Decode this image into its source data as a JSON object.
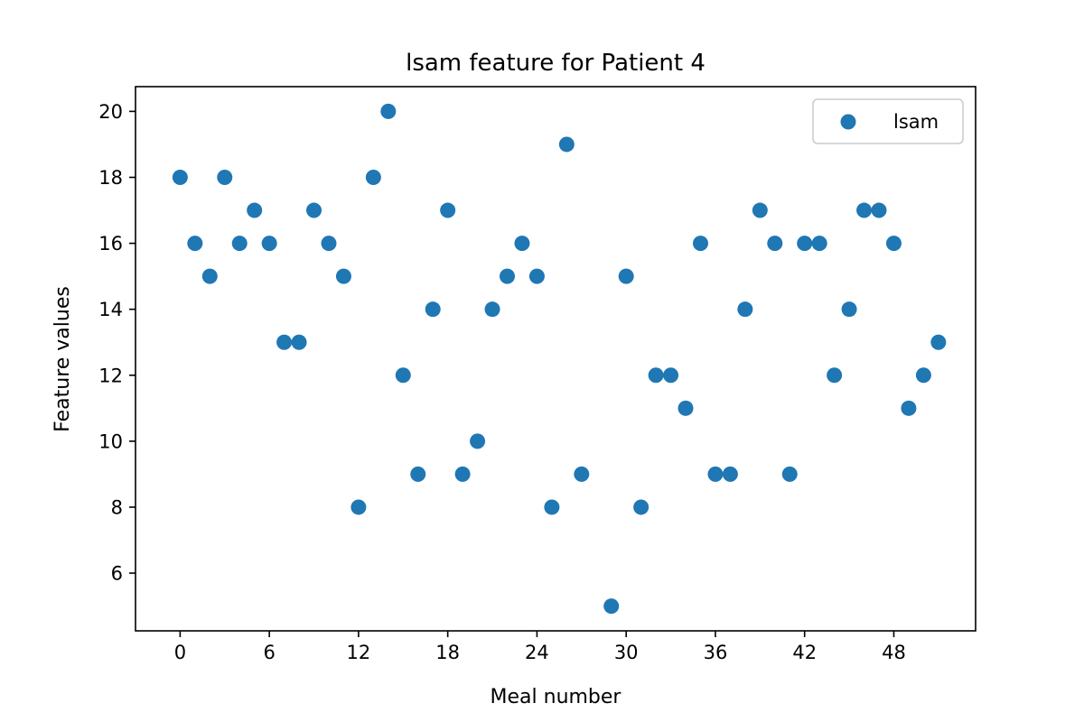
{
  "chart_data": {
    "type": "scatter",
    "title": "lsam feature for Patient 4",
    "xlabel": "Meal number",
    "ylabel": "Feature values",
    "xlim": [
      -3.0,
      53.5
    ],
    "ylim": [
      4.25,
      20.75
    ],
    "xticks": [
      0,
      6,
      12,
      18,
      24,
      30,
      36,
      42,
      48
    ],
    "yticks": [
      6,
      8,
      10,
      12,
      14,
      16,
      18,
      20
    ],
    "grid": false,
    "legend_position": "upper right",
    "series": [
      {
        "name": "lsam",
        "color": "#1f77b4",
        "x": [
          0,
          1,
          2,
          3,
          4,
          5,
          6,
          7,
          8,
          9,
          10,
          11,
          12,
          13,
          14,
          15,
          16,
          17,
          18,
          19,
          20,
          21,
          22,
          23,
          24,
          25,
          26,
          27,
          28,
          29,
          30,
          31,
          32,
          33,
          34,
          35,
          36,
          37,
          38,
          39,
          40,
          41,
          42,
          43,
          44,
          45,
          46,
          47,
          48,
          49,
          50,
          51
        ],
        "y": [
          18,
          16,
          15,
          18,
          16,
          17,
          16,
          13,
          13,
          17,
          16,
          15,
          8,
          18,
          20,
          12,
          9,
          14,
          17,
          9,
          10,
          14,
          15,
          16,
          15,
          8,
          19,
          9,
          null,
          5,
          15,
          8,
          12,
          12,
          11,
          16,
          9,
          9,
          14,
          17,
          16,
          9,
          16,
          16,
          12,
          14,
          17,
          17,
          16,
          11,
          12,
          13
        ]
      }
    ]
  }
}
